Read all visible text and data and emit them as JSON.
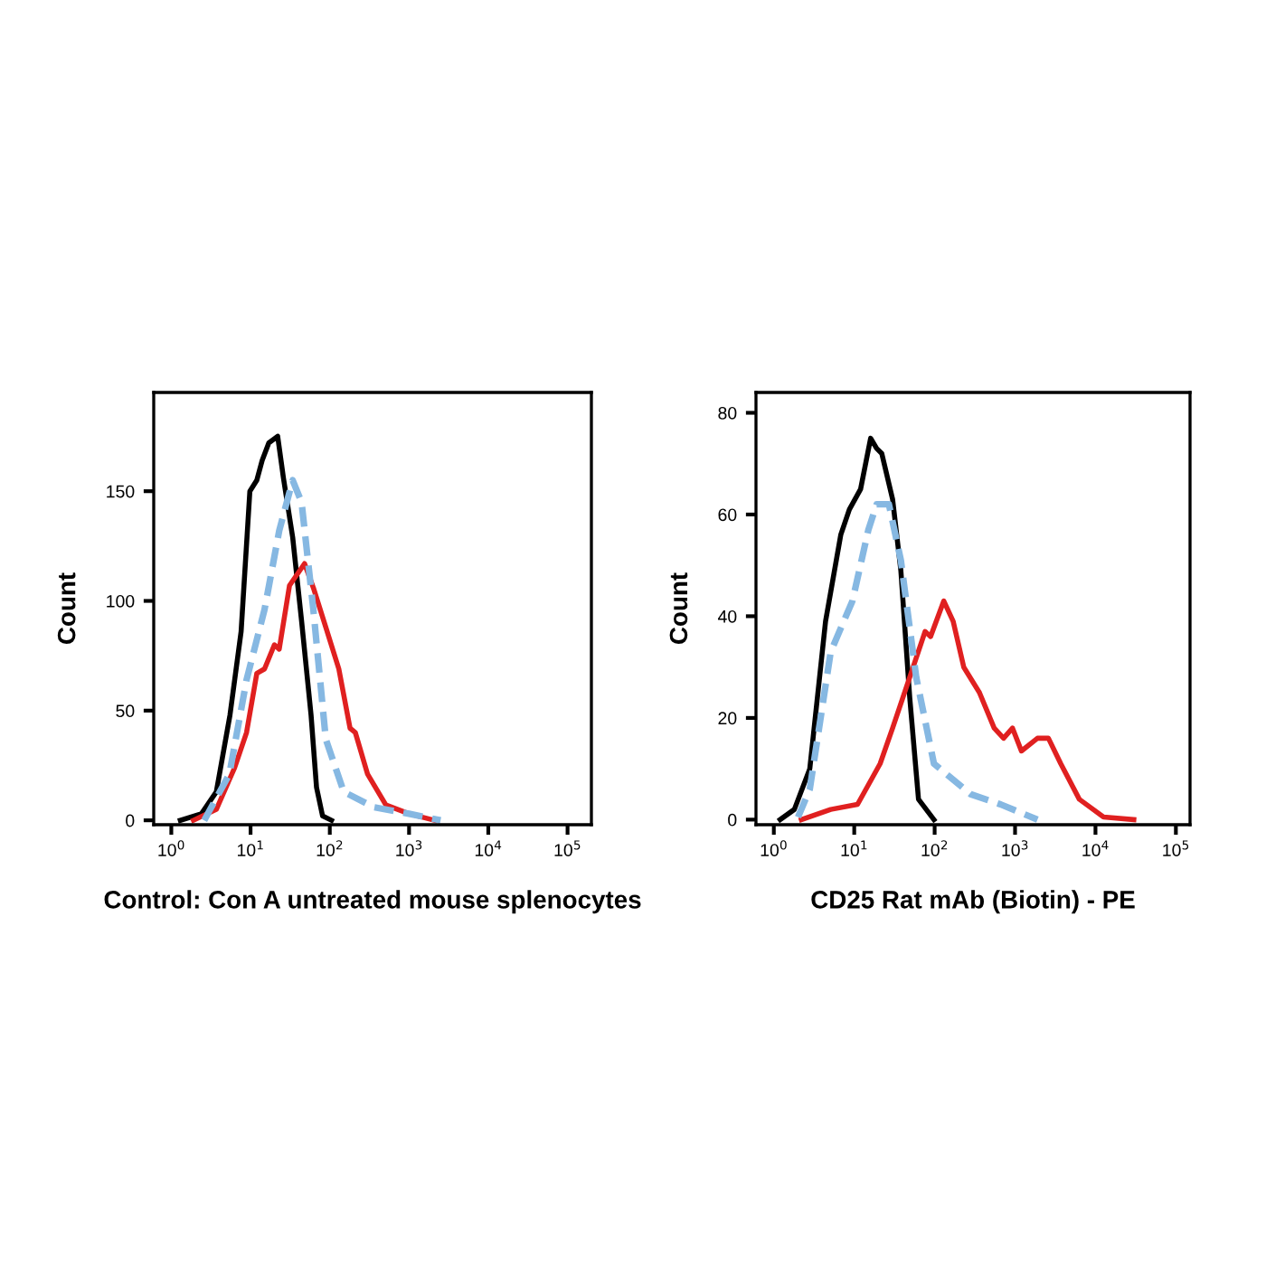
{
  "chart_data": [
    {
      "type": "line",
      "xlabel": "Control: Con A untreated mouse splenocytes",
      "ylabel": "Count",
      "log": "x",
      "grid": false,
      "legend": false,
      "xlim": [
        0.6,
        200000
      ],
      "ylim": [
        -2,
        195
      ],
      "xticks": [
        {
          "value": 1,
          "label": "10$^{0}$"
        },
        {
          "value": 10,
          "label": "10$^{1}$"
        },
        {
          "value": 100,
          "label": "10$^{2}$"
        },
        {
          "value": 1000,
          "label": "10$^{3}$"
        },
        {
          "value": 10000,
          "label": "10$^{4}$"
        },
        {
          "value": 100000,
          "label": "10$^{5}$"
        }
      ],
      "yticks": [
        0,
        50,
        100,
        150
      ],
      "series": [
        {
          "color": "#000000",
          "line_style": "solid",
          "x": [
            1.3,
            2.4,
            3.7,
            5.5,
            7.6,
            9.8,
            12,
            14,
            17,
            22,
            26,
            34,
            44,
            58,
            68,
            81,
            105
          ],
          "values": [
            0,
            3,
            13,
            48,
            86,
            150,
            155,
            164,
            172,
            175,
            156,
            129,
            91,
            48,
            15,
            2,
            0
          ]
        },
        {
          "color": "#e02020",
          "line_style": "solid",
          "x": [
            1.9,
            3.7,
            6.3,
            8.9,
            12,
            15,
            20,
            23,
            31,
            48,
            62,
            89,
            130,
            180,
            210,
            300,
            510,
            1000,
            2100
          ],
          "values": [
            0,
            5,
            24,
            40,
            67,
            69,
            80,
            78,
            107,
            117,
            106,
            88,
            69,
            42,
            40,
            21,
            7,
            3,
            0
          ]
        },
        {
          "color": "#86b8e2",
          "line_style": "dashed",
          "x": [
            2.6,
            5.4,
            8.9,
            15,
            23,
            34,
            44,
            62,
            89,
            150,
            360,
            1000,
            2500
          ],
          "values": [
            0,
            21,
            64,
            96,
            132,
            155,
            145,
            96,
            37,
            13,
            6,
            3,
            0
          ]
        }
      ]
    },
    {
      "type": "line",
      "xlabel": "CD25 Rat mAb (Biotin) - PE",
      "ylabel": "Count",
      "log": "x",
      "grid": false,
      "legend": false,
      "xlim": [
        0.6,
        150000
      ],
      "ylim": [
        -1,
        84
      ],
      "xticks": [
        {
          "value": 1,
          "label": "10$^{0}$"
        },
        {
          "value": 10,
          "label": "10$^{1}$"
        },
        {
          "value": 100,
          "label": "10$^{2}$"
        },
        {
          "value": 1000,
          "label": "10$^{3}$"
        },
        {
          "value": 10000,
          "label": "10$^{4}$"
        },
        {
          "value": 100000,
          "label": "10$^{5}$"
        }
      ],
      "yticks": [
        0,
        20,
        40,
        60,
        80
      ],
      "series": [
        {
          "color": "#000000",
          "line_style": "solid",
          "x": [
            1.2,
            1.8,
            2.8,
            4.4,
            6.8,
            8.7,
            12,
            16,
            19,
            22,
            30,
            38,
            49,
            63,
            98
          ],
          "values": [
            0,
            2,
            10,
            39,
            56,
            61,
            65,
            75,
            73,
            72,
            63,
            49,
            24,
            4,
            0
          ]
        },
        {
          "color": "#e02020",
          "line_style": "solid",
          "x": [
            2.2,
            5.1,
            11,
            21,
            30,
            49,
            76,
            89,
            130,
            170,
            230,
            360,
            550,
            720,
            930,
            1200,
            1900,
            2600,
            3700,
            6300,
            12600,
            30000
          ],
          "values": [
            0,
            2,
            3,
            11,
            18,
            28,
            37,
            36,
            43,
            39,
            30,
            25,
            18,
            16,
            18,
            13.5,
            16,
            16,
            11,
            4,
            0.5,
            0
          ]
        },
        {
          "color": "#86b8e2",
          "line_style": "dashed",
          "x": [
            2.0,
            2.8,
            5.1,
            9.5,
            15,
            19,
            27,
            38,
            59,
            98,
            280,
            660,
            1900
          ],
          "values": [
            0.5,
            6,
            33,
            43,
            57,
            62,
            62,
            51,
            28,
            11,
            5,
            3,
            0
          ]
        }
      ]
    }
  ]
}
